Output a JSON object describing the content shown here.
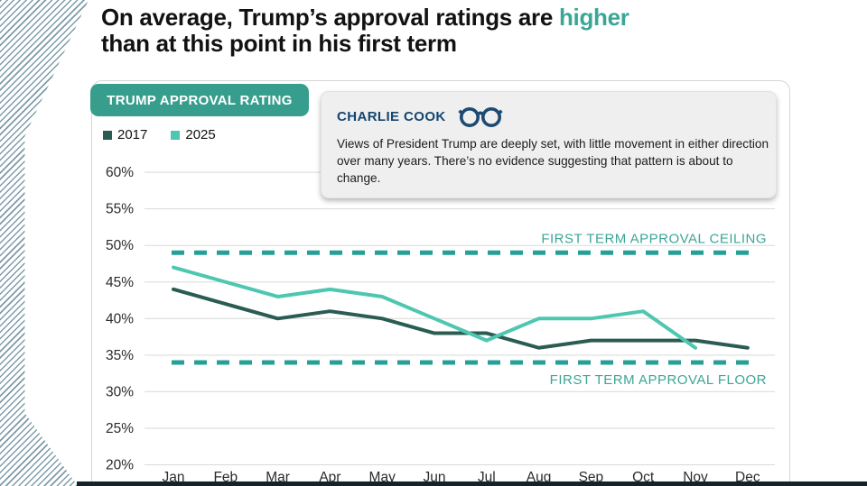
{
  "page": {
    "title_prefix": "On average, Trump’s approval ratings are ",
    "title_highlight": "higher",
    "title_line2": "than at this point in his first term"
  },
  "chart_header": {
    "badge_label": "TRUMP APPROVAL RATING"
  },
  "callout": {
    "author": "CHARLIE COOK",
    "icon": "glasses-icon",
    "text": "Views of President Trump are deeply set, with little movement in either direction over many years. There’s no evidence suggesting that pattern is about to change."
  },
  "chart_data": {
    "type": "line",
    "title": "TRUMP APPROVAL RATING",
    "categories": [
      "Jan",
      "Feb",
      "Mar",
      "Apr",
      "May",
      "Jun",
      "Jul",
      "Aug",
      "Sep",
      "Oct",
      "Nov",
      "Dec"
    ],
    "series": [
      {
        "name": "2017",
        "color": "#2a5c51",
        "values": [
          44,
          42,
          40,
          41,
          40,
          38,
          38,
          36,
          37,
          37,
          37,
          36
        ]
      },
      {
        "name": "2025",
        "color": "#4ec7b1",
        "values": [
          47,
          45,
          43,
          44,
          43,
          40,
          37,
          40,
          40,
          41,
          36,
          null
        ]
      }
    ],
    "reference_lines": [
      {
        "label": "FIRST TERM APPROVAL CEILING",
        "value": 49,
        "style": "dashed",
        "label_position": "above-right"
      },
      {
        "label": "FIRST TERM APPROVAL FLOOR",
        "value": 34,
        "style": "dashed",
        "label_position": "below-right"
      }
    ],
    "ylim": [
      20,
      60
    ],
    "ytick_step": 5,
    "ytick_suffix": "%",
    "grid": true,
    "legend_position": "top-left"
  },
  "colors": {
    "accent": "#379e8d",
    "reference_dash": "#26a096",
    "reference_label": "#3ba696",
    "grid": "#d9d9d9",
    "axis_text": "#2b2b2b",
    "navy": "#15466f",
    "stripe": "#7e9ba8",
    "footer_bar": "#142229"
  }
}
